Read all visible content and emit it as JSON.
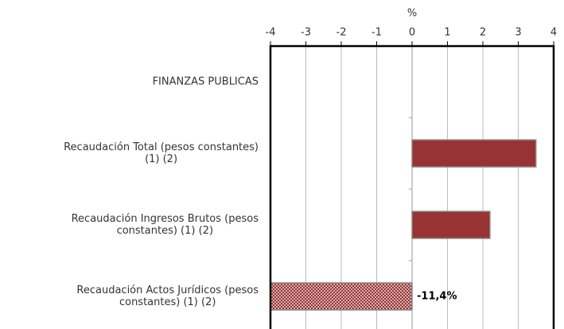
{
  "chart_data": {
    "type": "hbar",
    "xlabel": "%",
    "categories": [
      [
        "FINANZAS PUBLICAS"
      ],
      [
        "Recaudación Total (pesos constantes)",
        "(1) (2)"
      ],
      [
        "Recaudación Ingresos Brutos (pesos",
        "constantes)  (1) (2)"
      ],
      [
        "Recaudación Actos Jurídicos (pesos",
        "constantes)  (1) (2)"
      ]
    ],
    "values": [
      null,
      3.5,
      2.2,
      -11.4
    ],
    "value_labels": [
      null,
      null,
      null,
      "-11,4%"
    ],
    "hatch": [
      false,
      false,
      false,
      true
    ],
    "color": "#993333",
    "xlim": [
      -4,
      4
    ],
    "xticks": [
      -4,
      -3,
      -2,
      -1,
      0,
      1,
      2,
      3,
      4
    ],
    "grid": true
  }
}
